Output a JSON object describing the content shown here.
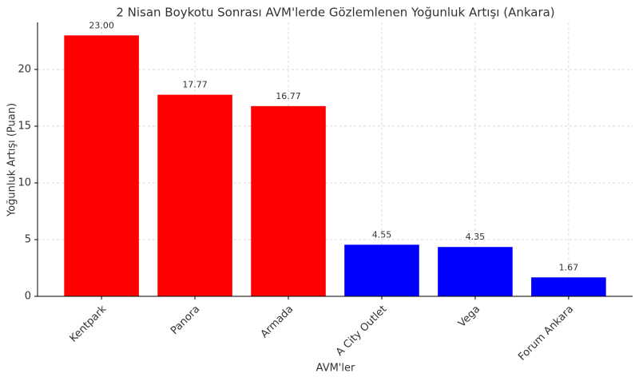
{
  "chart_data": {
    "type": "bar",
    "title": "2 Nisan Boykotu Sonrası AVM'lerde Gözlemlenen Yoğunluk Artışı (Ankara)",
    "x_label": "AVM'ler",
    "y_label": "Yoğunluk Artışı (Puan)",
    "categories": [
      "Kentpark",
      "Panora",
      "Armada",
      "A City Outlet",
      "Vega",
      "Forum Ankara"
    ],
    "values": [
      23,
      17.77,
      16.77,
      4.55,
      4.35,
      1.67
    ],
    "value_labels": [
      "23.00",
      "17.77",
      "16.77",
      "4.55",
      "4.35",
      "1.67"
    ],
    "colors": [
      "#ff0000",
      "#ff0000",
      "#ff0000",
      "#0000ff",
      "#0000ff",
      "#0000ff"
    ],
    "ylim": [
      0,
      24.15
    ],
    "yticks": [
      0,
      5,
      10,
      15,
      20
    ],
    "grid": true
  }
}
